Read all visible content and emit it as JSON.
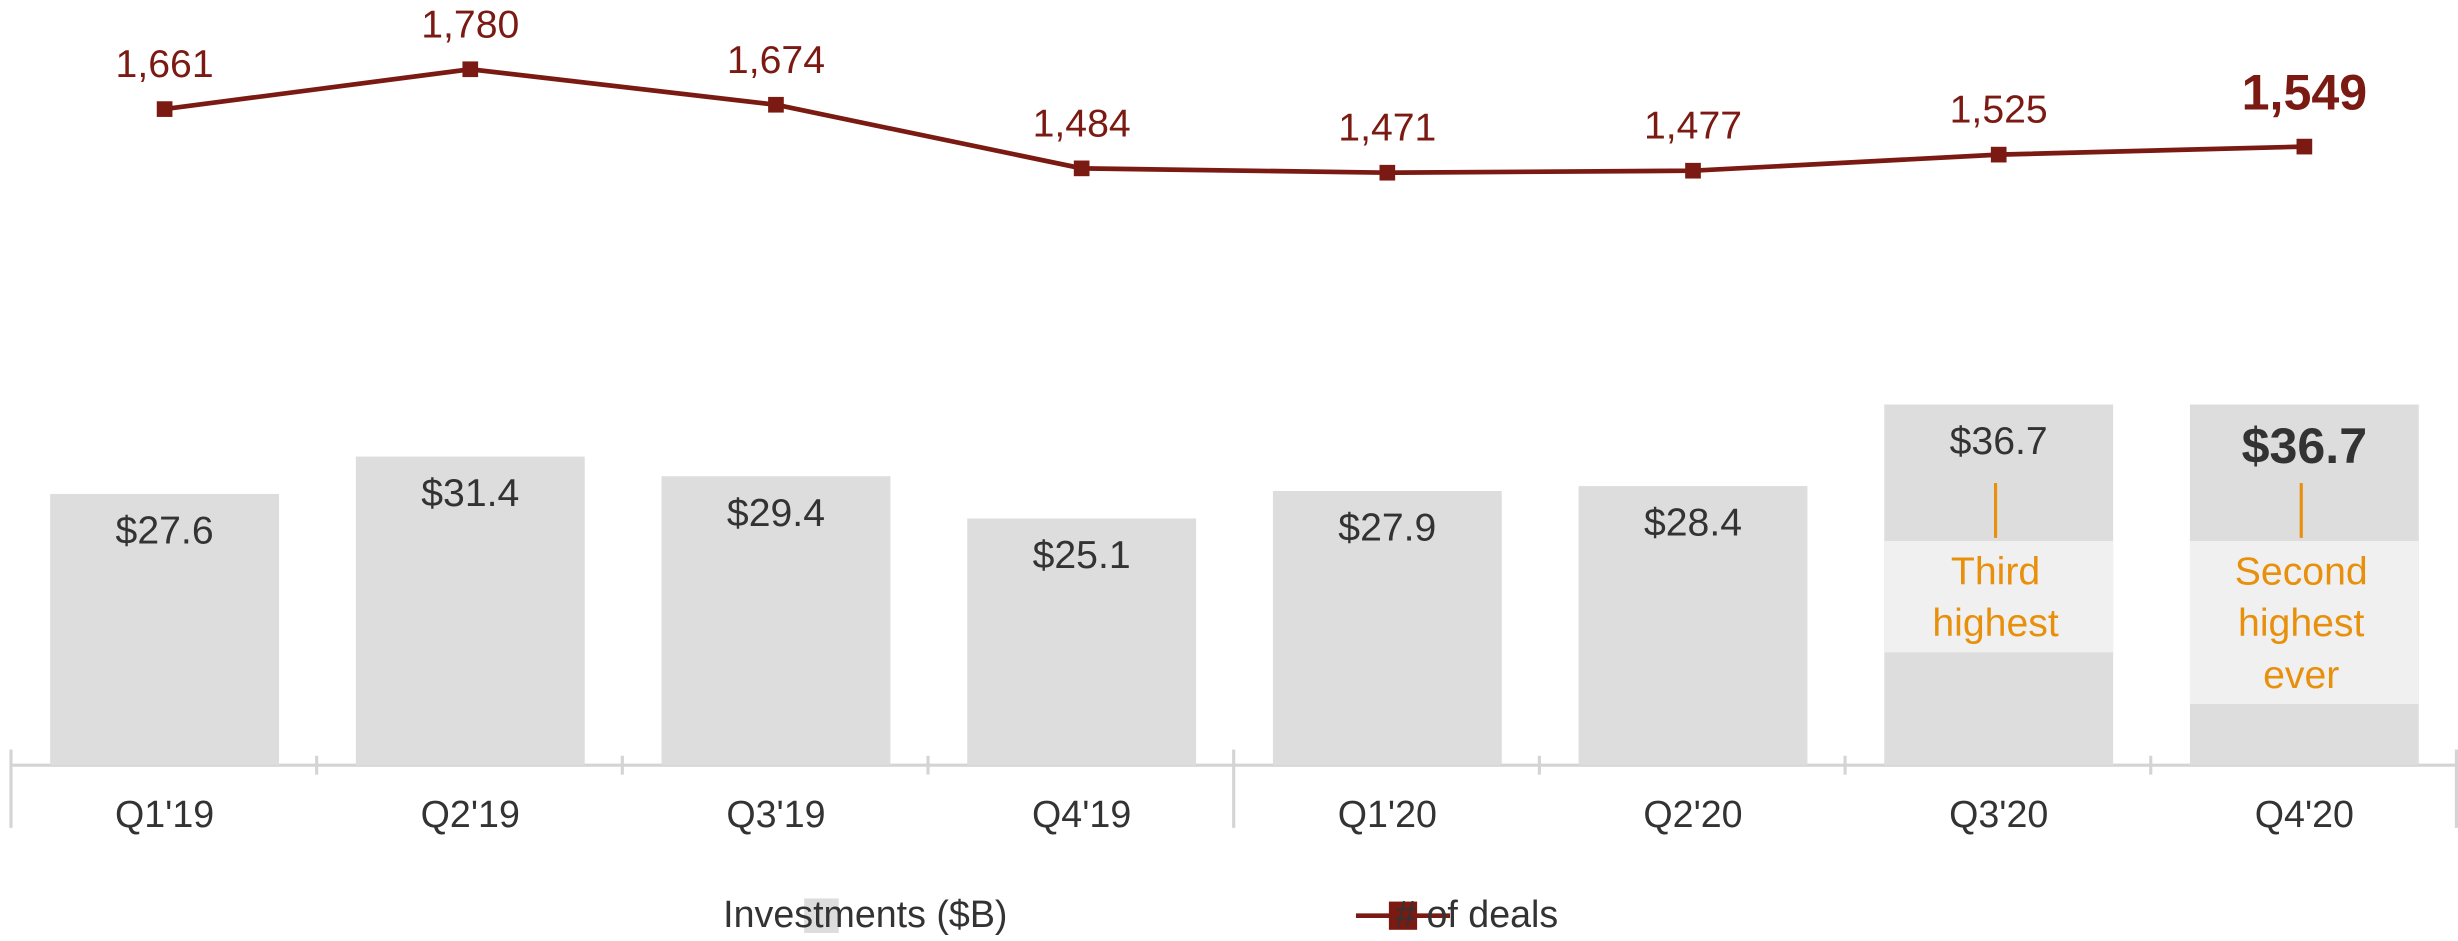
{
  "chart_data": {
    "type": "combo",
    "categories": [
      "Q1'19",
      "Q2'19",
      "Q3'19",
      "Q4'19",
      "Q1'20",
      "Q2'20",
      "Q3'20",
      "Q4'20"
    ],
    "series": [
      {
        "name": "Investments ($B)",
        "type": "bar",
        "color": "#dddddd",
        "values": [
          27.6,
          31.4,
          29.4,
          25.1,
          27.9,
          28.4,
          36.7,
          36.7
        ],
        "value_labels": [
          "$27.6",
          "$31.4",
          "$29.4",
          "$25.1",
          "$27.9",
          "$28.4",
          "$36.7",
          "$36.7"
        ]
      },
      {
        "name": "# of deals",
        "type": "line",
        "axis": "y2",
        "color": "#7b1a12",
        "values": [
          1661,
          1780,
          1674,
          1484,
          1471,
          1477,
          1525,
          1549
        ],
        "value_labels": [
          "1,661",
          "1,780",
          "1,674",
          "1,484",
          "1,471",
          "1,477",
          "1,525",
          "1,549"
        ]
      }
    ],
    "annotations": [
      [
        "Third",
        "highest"
      ],
      [
        "Second",
        "highest",
        "ever"
      ]
    ],
    "annotation_color": "#e8900c",
    "ylim": [
      0,
      40
    ],
    "y2lim": [
      1400,
      1900
    ],
    "legend": "bottom"
  }
}
